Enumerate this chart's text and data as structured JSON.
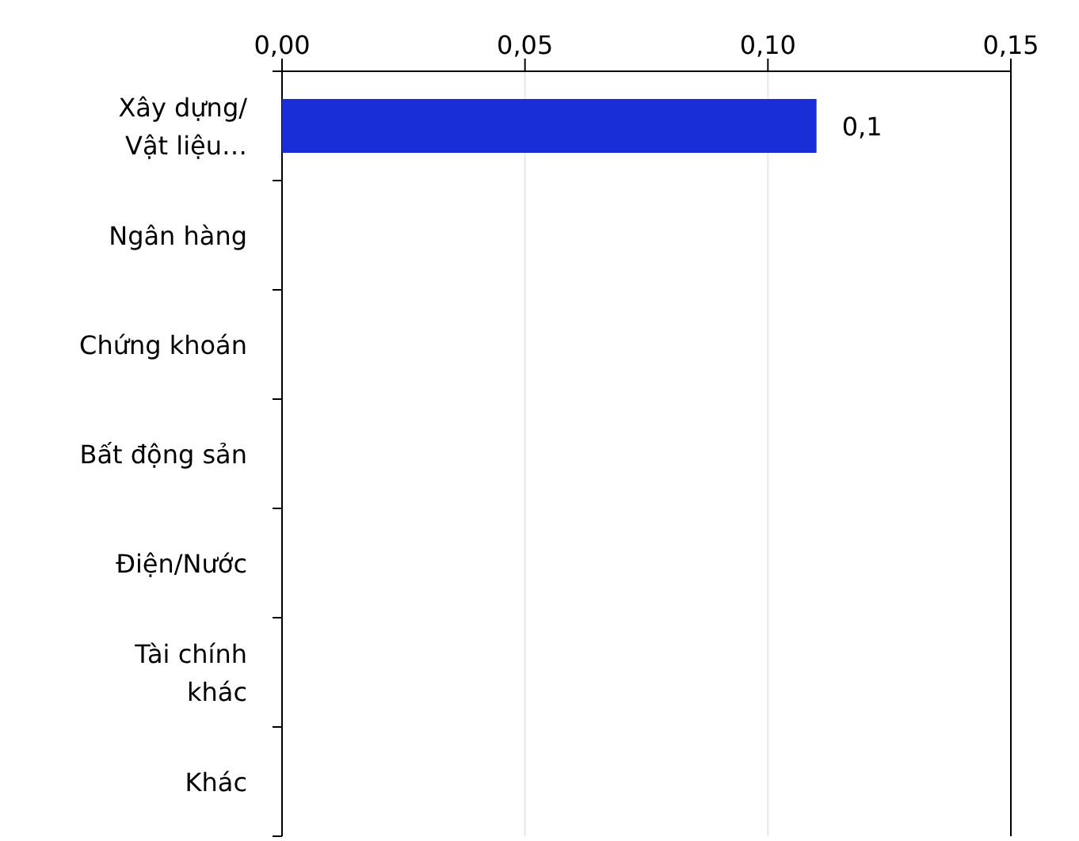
{
  "chart_data": {
    "type": "bar",
    "orientation": "horizontal",
    "categories": [
      "Xây dựng/\nVật liệu…",
      "Ngân hàng",
      "Chứng khoán",
      "Bất động sản",
      "Điện/Nước",
      "Tài chính\nkhác",
      "Khác"
    ],
    "values": [
      0.11,
      null,
      null,
      null,
      null,
      null,
      null
    ],
    "value_labels": [
      "0,1",
      null,
      null,
      null,
      null,
      null,
      null
    ],
    "color": "#1a2ed8",
    "xlim": [
      0,
      0.15
    ],
    "xticks": [
      {
        "value": 0,
        "label": "0,00"
      },
      {
        "value": 0.05,
        "label": "0,05"
      },
      {
        "value": 0.1,
        "label": "0,10"
      },
      {
        "value": 0.15,
        "label": "0,15"
      }
    ],
    "grid": "x"
  }
}
